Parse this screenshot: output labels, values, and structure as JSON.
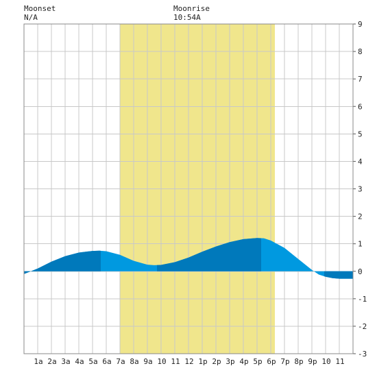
{
  "header": {
    "moonset_label": "Moonset",
    "moonset_value": "N/A",
    "moonrise_label": "Moonrise",
    "moonrise_value": "10:54A"
  },
  "chart_data": {
    "type": "area",
    "x_range": [
      0,
      24
    ],
    "ylim": [
      -3,
      9
    ],
    "y_ticks": [
      "9",
      "8",
      "7",
      "6",
      "5",
      "4",
      "3",
      "2",
      "1",
      "0",
      "-1",
      "-2",
      "-3"
    ],
    "x_tick_labels": [
      "1a",
      "2a",
      "3a",
      "4a",
      "5a",
      "6a",
      "7a",
      "8a",
      "9a",
      "10",
      "11",
      "12",
      "1p",
      "2p",
      "3p",
      "4p",
      "5p",
      "6p",
      "7p",
      "8p",
      "9p",
      "10",
      "11"
    ],
    "grid": true,
    "daylight_band": {
      "start_hour": 7.0,
      "end_hour": 18.3
    },
    "band_segments": [
      [
        0,
        5.6
      ],
      [
        9.7,
        17.3
      ],
      [
        21.9,
        24
      ]
    ],
    "series": [
      {
        "hours": [
          0,
          1,
          2,
          3,
          4,
          5,
          5.5,
          6,
          7,
          8,
          9,
          9.5,
          10,
          11,
          12,
          13,
          14,
          15,
          16,
          17,
          17.5,
          18,
          19,
          20,
          21,
          21.5,
          22,
          22.5,
          23,
          24
        ],
        "heights": [
          -0.1,
          0.1,
          0.35,
          0.55,
          0.68,
          0.74,
          0.75,
          0.73,
          0.6,
          0.38,
          0.24,
          0.22,
          0.23,
          0.33,
          0.5,
          0.71,
          0.9,
          1.06,
          1.17,
          1.21,
          1.2,
          1.12,
          0.85,
          0.45,
          0.05,
          -0.12,
          -0.2,
          -0.25,
          -0.27,
          -0.27
        ]
      }
    ],
    "colors": {
      "daylight": "#f0e68c",
      "tide_light": "#0099e0",
      "tide_dark": "#0079bb",
      "grid": "#c8c8c8"
    }
  }
}
